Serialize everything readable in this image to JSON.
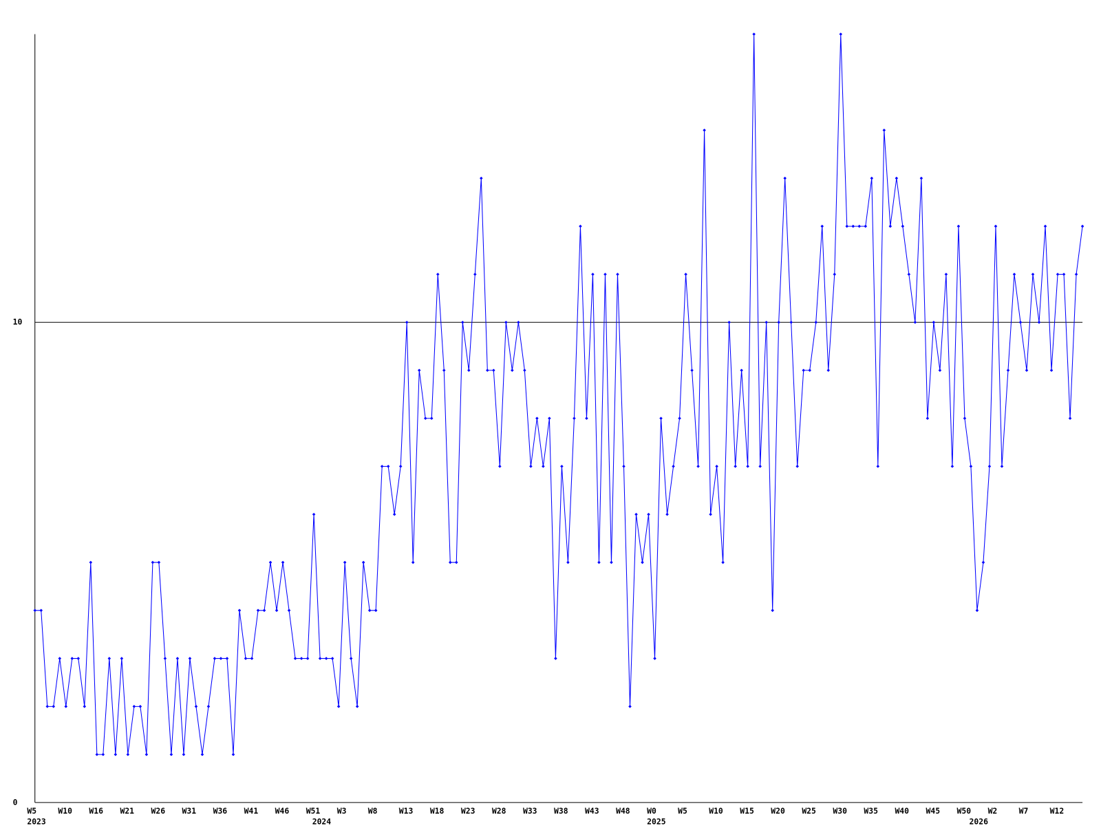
{
  "chart_data": {
    "type": "line",
    "categories": [
      "W5",
      null,
      null,
      null,
      null,
      "W10",
      null,
      null,
      null,
      null,
      "W16",
      null,
      null,
      null,
      null,
      "W21",
      null,
      null,
      null,
      null,
      "W26",
      null,
      null,
      null,
      null,
      "W31",
      null,
      null,
      null,
      null,
      "W36",
      null,
      null,
      null,
      null,
      "W41",
      null,
      null,
      null,
      null,
      "W46",
      null,
      null,
      null,
      null,
      "W51",
      null,
      null,
      null,
      null,
      "W3",
      null,
      null,
      null,
      null,
      "W8",
      null,
      null,
      null,
      null,
      "W13",
      null,
      null,
      null,
      null,
      "W18",
      null,
      null,
      null,
      null,
      "W23",
      null,
      null,
      null,
      null,
      "W28",
      null,
      null,
      null,
      null,
      "W33",
      null,
      null,
      null,
      null,
      "W38",
      null,
      null,
      null,
      null,
      "W43",
      null,
      null,
      null,
      null,
      "W48",
      null,
      null,
      null,
      null,
      "W0",
      null,
      null,
      null,
      null,
      "W5",
      null,
      null,
      null,
      null,
      "W10",
      null,
      null,
      null,
      null,
      "W15",
      null,
      null,
      null,
      null,
      "W20",
      null,
      null,
      null,
      null,
      "W25",
      null,
      null,
      null,
      null,
      "W30",
      null,
      null,
      null,
      null,
      "W35",
      null,
      null,
      null,
      null,
      "W40",
      null,
      null,
      null,
      null,
      "W45",
      null,
      null,
      null,
      null,
      "W50",
      null,
      null,
      null,
      null,
      "W2",
      null,
      null,
      null,
      null,
      "W7",
      null,
      null,
      null,
      null,
      "W12",
      null,
      null,
      null,
      null
    ],
    "x_years": [
      "2023",
      null,
      null,
      null,
      null,
      null,
      null,
      null,
      null,
      null,
      null,
      null,
      null,
      null,
      null,
      null,
      null,
      null,
      null,
      null,
      null,
      null,
      null,
      null,
      null,
      null,
      null,
      null,
      null,
      null,
      null,
      null,
      null,
      null,
      null,
      null,
      null,
      null,
      null,
      null,
      null,
      null,
      null,
      null,
      null,
      null,
      "2024",
      null,
      null,
      null,
      null,
      null,
      null,
      null,
      null,
      null,
      null,
      null,
      null,
      null,
      null,
      null,
      null,
      null,
      null,
      null,
      null,
      null,
      null,
      null,
      null,
      null,
      null,
      null,
      null,
      null,
      null,
      null,
      null,
      null,
      null,
      null,
      null,
      null,
      null,
      null,
      null,
      null,
      null,
      null,
      null,
      null,
      null,
      null,
      null,
      null,
      null,
      null,
      null,
      null,
      "2025",
      null,
      null,
      null,
      null,
      null,
      null,
      null,
      null,
      null,
      null,
      null,
      null,
      null,
      null,
      null,
      null,
      null,
      null,
      null,
      null,
      null,
      null,
      null,
      null,
      null,
      null,
      null,
      null,
      null,
      null,
      null,
      null,
      null,
      null,
      null,
      null,
      null,
      null,
      null,
      null,
      null,
      null,
      null,
      null,
      null,
      null,
      null,
      null,
      null,
      null,
      null,
      "2026",
      null,
      null,
      null,
      null,
      null,
      null,
      null,
      null,
      null,
      null,
      null,
      null,
      null,
      null,
      null,
      null,
      null
    ],
    "series": [
      {
        "color": "#0000ff",
        "values": [
          4,
          4,
          2,
          2,
          3,
          2,
          3,
          3,
          2,
          5,
          1,
          1,
          3,
          1,
          3,
          1,
          2,
          2,
          1,
          5,
          5,
          3,
          1,
          3,
          1,
          3,
          2,
          1,
          2,
          3,
          3,
          3,
          1,
          4,
          3,
          3,
          4,
          4,
          5,
          4,
          5,
          4,
          3,
          3,
          3,
          6,
          3,
          3,
          3,
          2,
          5,
          3,
          2,
          5,
          4,
          4,
          7,
          7,
          6,
          7,
          10,
          5,
          9,
          8,
          8,
          11,
          9,
          5,
          5,
          10,
          9,
          11,
          13,
          9,
          9,
          7,
          10,
          9,
          10,
          9,
          7,
          8,
          7,
          8,
          3,
          7,
          5,
          8,
          12,
          8,
          11,
          5,
          11,
          5,
          11,
          7,
          2,
          6,
          5,
          6,
          3,
          8,
          6,
          7,
          8,
          11,
          9,
          7,
          14,
          6,
          7,
          5,
          10,
          7,
          9,
          7,
          16,
          7,
          10,
          4,
          10,
          13,
          10,
          7,
          9,
          9,
          10,
          12,
          9,
          11,
          16,
          12,
          12,
          12,
          12,
          13,
          7,
          14,
          12,
          13,
          12,
          11,
          10,
          13,
          8,
          10,
          9,
          11,
          7,
          12,
          8,
          7,
          4,
          5,
          7,
          12,
          7,
          9,
          11,
          10,
          9,
          11,
          10,
          12,
          9,
          11,
          11,
          8,
          11,
          12
        ]
      }
    ],
    "ylim": [
      0,
      16
    ],
    "yticks": [
      0,
      10
    ],
    "grid": true
  }
}
